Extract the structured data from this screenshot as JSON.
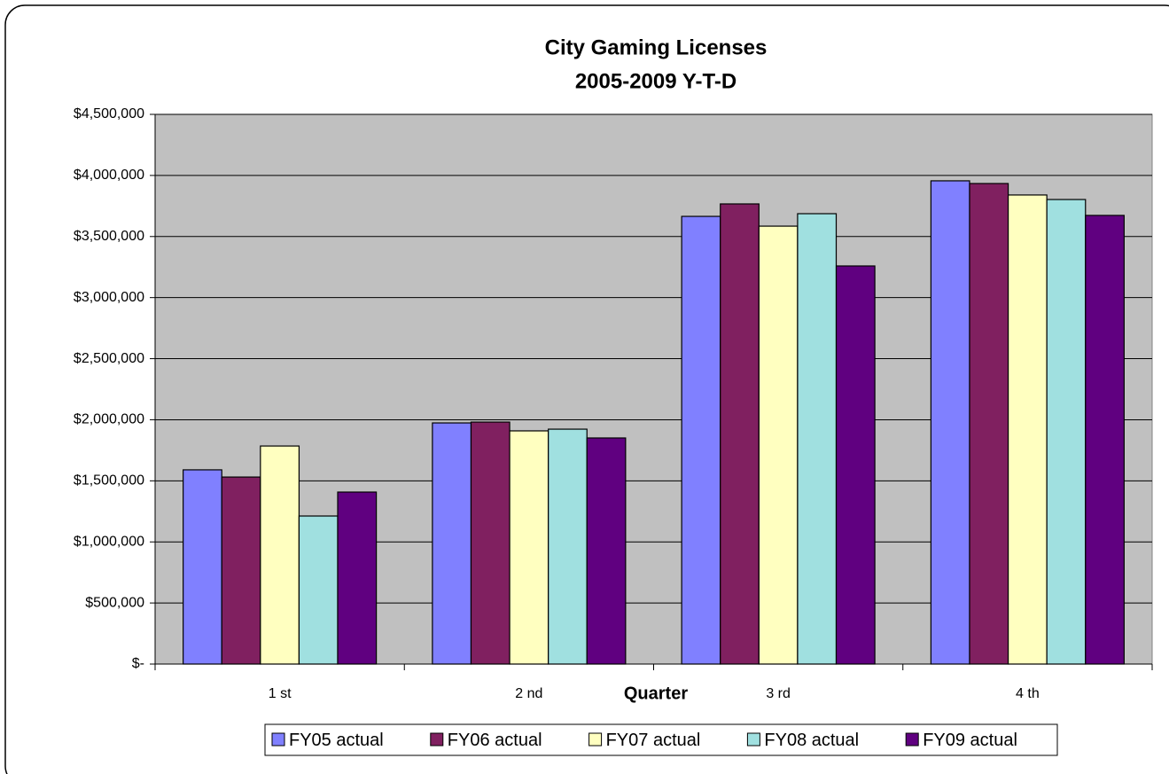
{
  "chart_data": {
    "type": "bar",
    "title": "City Gaming Licenses",
    "subtitle": "2005-2009 Y-T-D",
    "x_label": "Quarter",
    "categories": [
      "1 st",
      "2 nd",
      "3 rd",
      "4 th"
    ],
    "series": [
      {
        "name": "FY05 actual",
        "color": "#8080ff",
        "values": [
          1590000,
          1974000,
          3665000,
          3956000
        ]
      },
      {
        "name": "FY06 actual",
        "color": "#802060",
        "values": [
          1531000,
          1981000,
          3767000,
          3934000
        ]
      },
      {
        "name": "FY07 actual",
        "color": "#ffffc0",
        "values": [
          1785000,
          1909000,
          3585000,
          3840000
        ]
      },
      {
        "name": "FY08 actual",
        "color": "#a0e0e0",
        "values": [
          1212000,
          1923000,
          3687000,
          3803000
        ]
      },
      {
        "name": "FY09 actual",
        "color": "#600080",
        "values": [
          1408000,
          1851000,
          3259000,
          3673000
        ]
      }
    ],
    "ylim": [
      0,
      4500000
    ],
    "yticks": [
      {
        "value": 0,
        "label": "$-"
      },
      {
        "value": 500000,
        "label": "$500,000"
      },
      {
        "value": 1000000,
        "label": "$1,000,000"
      },
      {
        "value": 1500000,
        "label": "$1,500,000"
      },
      {
        "value": 2000000,
        "label": "$2,000,000"
      },
      {
        "value": 2500000,
        "label": "$2,500,000"
      },
      {
        "value": 3000000,
        "label": "$3,000,000"
      },
      {
        "value": 3500000,
        "label": "$3,500,000"
      },
      {
        "value": 4000000,
        "label": "$4,000,000"
      },
      {
        "value": 4500000,
        "label": "$4,500,000"
      }
    ],
    "grid": true,
    "plot_background": "#c0c0c0",
    "legend": "bottom"
  }
}
